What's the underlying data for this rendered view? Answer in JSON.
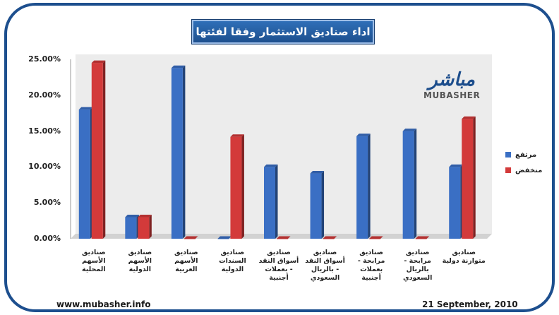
{
  "title": "اداء صناديق الاستثمار وفقا لفئتها",
  "footer_left": "www.mubasher.info",
  "footer_right": "21 September, 2010",
  "logo": {
    "arabic": "مباشر",
    "english": "MUBASHER"
  },
  "colors": {
    "series_up": "#3a6fc4",
    "series_down": "#d33a3a",
    "frame": "#1d4f8e"
  },
  "chart_data": {
    "type": "bar",
    "categories": [
      "صناديق الأسهم المحلية",
      "صناديق الأسهم الدولية",
      "صناديق الأسهم العربية",
      "صناديق السندات الدولية",
      "صناديق أسواق النقد - بعملات أجنبية",
      "صناديق أسواق النقد - بالريال السعودي",
      "صناديق مرابحة - بعملات أجنبية",
      "صناديق مرابحة - بالريال السعودي",
      "صناديق متوازنة دولية"
    ],
    "series": [
      {
        "name": "مرتفع",
        "color": "#3a6fc4",
        "values": [
          18.0,
          3.0,
          23.8,
          0.0,
          10.0,
          9.1,
          14.3,
          15.0,
          10.0
        ]
      },
      {
        "name": "منخفض",
        "color": "#d33a3a",
        "values": [
          24.5,
          3.0,
          0.0,
          14.2,
          0.0,
          0.0,
          0.0,
          0.0,
          16.7
        ]
      }
    ],
    "yticks": [
      "0.00%",
      "5.00%",
      "10.00%",
      "15.00%",
      "20.00%",
      "25.00%"
    ],
    "ylim": [
      0,
      25
    ],
    "legend_position": "right"
  }
}
